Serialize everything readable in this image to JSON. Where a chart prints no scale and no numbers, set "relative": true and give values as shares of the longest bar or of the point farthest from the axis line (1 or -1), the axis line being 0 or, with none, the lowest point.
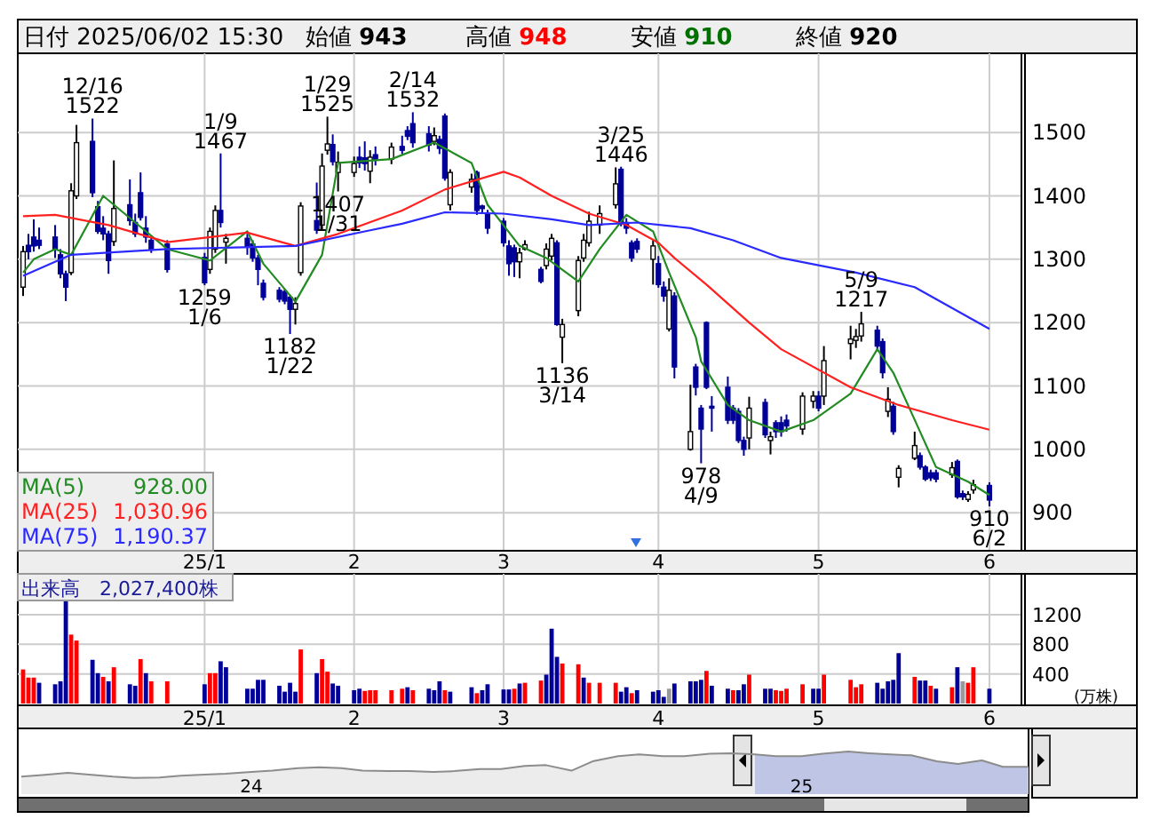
{
  "chart_data": [
    {
      "type": "candlestick",
      "title": "日付 2025/06/02 15:30",
      "grid": true,
      "legend": "bottom left",
      "x": [
        "2024-12-03",
        "2024-12-04",
        "2024-12-05",
        "2024-12-06",
        "2024-12-09",
        "2024-12-10",
        "2024-12-11",
        "2024-12-12",
        "2024-12-13",
        "2024-12-16",
        "2024-12-17",
        "2024-12-18",
        "2024-12-19",
        "2024-12-20",
        "2024-12-23",
        "2024-12-24",
        "2024-12-25",
        "2024-12-26",
        "2024-12-27",
        "2024-12-30",
        "2025-01-06",
        "2025-01-07",
        "2025-01-08",
        "2025-01-09",
        "2025-01-10",
        "2025-01-14",
        "2025-01-15",
        "2025-01-16",
        "2025-01-17",
        "2025-01-20",
        "2025-01-21",
        "2025-01-22",
        "2025-01-23",
        "2025-01-24",
        "2025-01-27",
        "2025-01-28",
        "2025-01-29",
        "2025-01-30",
        "2025-01-31",
        "2025-02-03",
        "2025-02-04",
        "2025-02-05",
        "2025-02-06",
        "2025-02-07",
        "2025-02-10",
        "2025-02-12",
        "2025-02-13",
        "2025-02-14",
        "2025-02-17",
        "2025-02-18",
        "2025-02-19",
        "2025-02-20",
        "2025-02-21",
        "2025-02-25",
        "2025-02-26",
        "2025-02-27",
        "2025-02-28",
        "2025-03-03",
        "2025-03-04",
        "2025-03-05",
        "2025-03-06",
        "2025-03-07",
        "2025-03-10",
        "2025-03-11",
        "2025-03-12",
        "2025-03-13",
        "2025-03-14",
        "2025-03-17",
        "2025-03-18",
        "2025-03-19",
        "2025-03-21",
        "2025-03-24",
        "2025-03-25",
        "2025-03-26",
        "2025-03-27",
        "2025-03-28",
        "2025-03-31",
        "2025-04-01",
        "2025-04-02",
        "2025-04-03",
        "2025-04-04",
        "2025-04-07",
        "2025-04-08",
        "2025-04-09",
        "2025-04-10",
        "2025-04-11",
        "2025-04-14",
        "2025-04-15",
        "2025-04-16",
        "2025-04-17",
        "2025-04-18",
        "2025-04-21",
        "2025-04-22",
        "2025-04-23",
        "2025-04-24",
        "2025-04-25",
        "2025-04-28",
        "2025-04-30",
        "2025-05-01",
        "2025-05-02",
        "2025-05-07",
        "2025-05-08",
        "2025-05-09",
        "2025-05-12",
        "2025-05-13",
        "2025-05-14",
        "2025-05-15",
        "2025-05-16",
        "2025-05-19",
        "2025-05-20",
        "2025-05-21",
        "2025-05-22",
        "2025-05-23",
        "2025-05-26",
        "2025-05-27",
        "2025-05-28",
        "2025-05-29",
        "2025-05-30",
        "2025-06-02"
      ],
      "ohlc": [
        [
          1256,
          1321,
          1242,
          1312
        ],
        [
          1322,
          1340,
          1300,
          1312
        ],
        [
          1335,
          1363,
          1312,
          1321
        ],
        [
          1330,
          1350,
          1316,
          1322
        ],
        [
          1335,
          1354,
          1302,
          1316
        ],
        [
          1307,
          1316,
          1270,
          1277
        ],
        [
          1277,
          1282,
          1234,
          1256
        ],
        [
          1279,
          1420,
          1275,
          1408
        ],
        [
          1400,
          1512,
          1395,
          1484
        ],
        [
          1486,
          1522,
          1398,
          1405
        ],
        [
          1383,
          1392,
          1340,
          1344
        ],
        [
          1349,
          1368,
          1330,
          1340
        ],
        [
          1340,
          1345,
          1277,
          1298
        ],
        [
          1328,
          1456,
          1321,
          1380
        ],
        [
          1386,
          1426,
          1353,
          1361
        ],
        [
          1358,
          1372,
          1335,
          1340
        ],
        [
          1405,
          1437,
          1361,
          1366
        ],
        [
          1349,
          1368,
          1326,
          1335
        ],
        [
          1330,
          1335,
          1310,
          1316
        ],
        [
          1324,
          1330,
          1279,
          1284
        ],
        [
          1303,
          1310,
          1259,
          1263
        ],
        [
          1284,
          1350,
          1277,
          1344
        ],
        [
          1316,
          1385,
          1310,
          1377
        ],
        [
          1377,
          1467,
          1350,
          1358
        ],
        [
          1327,
          1340,
          1293,
          1333
        ],
        [
          1333,
          1340,
          1307,
          1320
        ],
        [
          1324,
          1330,
          1296,
          1302
        ],
        [
          1302,
          1307,
          1259,
          1284
        ],
        [
          1262,
          1268,
          1235,
          1240
        ],
        [
          1251,
          1256,
          1232,
          1237
        ],
        [
          1249,
          1253,
          1229,
          1234
        ],
        [
          1240,
          1244,
          1182,
          1221
        ],
        [
          1221,
          1240,
          1197,
          1230
        ],
        [
          1279,
          1390,
          1274,
          1384
        ],
        [
          1361,
          1421,
          1340,
          1346
        ],
        [
          1354,
          1467,
          1347,
          1447
        ],
        [
          1472,
          1525,
          1465,
          1482
        ],
        [
          1481,
          1497,
          1448,
          1454
        ],
        [
          1437,
          1470,
          1407,
          1453
        ],
        [
          1437,
          1462,
          1430,
          1451
        ],
        [
          1461,
          1478,
          1444,
          1452
        ],
        [
          1460,
          1486,
          1440,
          1451
        ],
        [
          1439,
          1472,
          1420,
          1461
        ],
        [
          1465,
          1478,
          1448,
          1458
        ],
        [
          1458,
          1484,
          1450,
          1477
        ],
        [
          1478,
          1495,
          1466,
          1472
        ],
        [
          1503,
          1510,
          1488,
          1494
        ],
        [
          1514,
          1532,
          1476,
          1484
        ],
        [
          1498,
          1510,
          1470,
          1480
        ],
        [
          1486,
          1508,
          1480,
          1495
        ],
        [
          1489,
          1495,
          1466,
          1475
        ],
        [
          1526,
          1530,
          1424,
          1428
        ],
        [
          1386,
          1442,
          1377,
          1437
        ],
        [
          1414,
          1435,
          1405,
          1426
        ],
        [
          1437,
          1440,
          1370,
          1377
        ],
        [
          1384,
          1386,
          1374,
          1380
        ],
        [
          1372,
          1378,
          1340,
          1349
        ],
        [
          1360,
          1365,
          1320,
          1326
        ],
        [
          1321,
          1330,
          1274,
          1293
        ],
        [
          1318,
          1323,
          1272,
          1296
        ],
        [
          1296,
          1318,
          1270,
          1310
        ],
        [
          1316,
          1330,
          1314,
          1323
        ],
        [
          1284,
          1288,
          1262,
          1265
        ],
        [
          1290,
          1325,
          1284,
          1316
        ],
        [
          1305,
          1340,
          1298,
          1333
        ],
        [
          1326,
          1330,
          1195,
          1197
        ],
        [
          1177,
          1206,
          1136,
          1197
        ],
        [
          1219,
          1305,
          1210,
          1298
        ],
        [
          1302,
          1340,
          1296,
          1330
        ],
        [
          1326,
          1375,
          1320,
          1360
        ],
        [
          1354,
          1385,
          1340,
          1372
        ],
        [
          1386,
          1445,
          1380,
          1419
        ],
        [
          1442,
          1446,
          1352,
          1358
        ],
        [
          1358,
          1365,
          1340,
          1349
        ],
        [
          1326,
          1330,
          1296,
          1302
        ],
        [
          1328,
          1333,
          1310,
          1316
        ],
        [
          1300,
          1330,
          1260,
          1321
        ],
        [
          1293,
          1305,
          1255,
          1260
        ],
        [
          1256,
          1265,
          1233,
          1242
        ],
        [
          1190,
          1270,
          1186,
          1251
        ],
        [
          1242,
          1248,
          1112,
          1130
        ],
        [
          1000,
          1102,
          998,
          1028
        ],
        [
          1130,
          1135,
          1085,
          1098
        ],
        [
          1065,
          1070,
          978,
          1032
        ],
        [
          1200,
          1202,
          1095,
          1098
        ],
        [
          1068,
          1084,
          1028,
          1065
        ],
        [
          1098,
          1115,
          1040,
          1046
        ],
        [
          1065,
          1070,
          1040,
          1046
        ],
        [
          1060,
          1065,
          1010,
          1014
        ],
        [
          1014,
          1020,
          990,
          1000
        ],
        [
          1018,
          1083,
          1000,
          1065
        ],
        [
          1074,
          1080,
          1018,
          1023
        ],
        [
          1014,
          1028,
          992,
          1020
        ],
        [
          1042,
          1046,
          1018,
          1028
        ],
        [
          1042,
          1052,
          1020,
          1028
        ],
        [
          1046,
          1055,
          1028,
          1037
        ],
        [
          1032,
          1090,
          1023,
          1084
        ],
        [
          1076,
          1092,
          1065,
          1084
        ],
        [
          1084,
          1092,
          1060,
          1065
        ],
        [
          1084,
          1163,
          1070,
          1140
        ],
        [
          1167,
          1195,
          1142,
          1174
        ],
        [
          1172,
          1190,
          1160,
          1178
        ],
        [
          1179,
          1217,
          1170,
          1198
        ],
        [
          1188,
          1195,
          1155,
          1163
        ],
        [
          1170,
          1175,
          1112,
          1121
        ],
        [
          1060,
          1098,
          1051,
          1079
        ],
        [
          1068,
          1075,
          1023,
          1028
        ],
        [
          956,
          975,
          940,
          970
        ],
        [
          986,
          1028,
          983,
          1006
        ],
        [
          990,
          995,
          968,
          972
        ],
        [
          972,
          975,
          950,
          953
        ],
        [
          963,
          968,
          950,
          955
        ],
        [
          963,
          968,
          948,
          953
        ],
        [
          960,
          980,
          955,
          971
        ],
        [
          981,
          984,
          922,
          925
        ],
        [
          930,
          935,
          920,
          925
        ],
        [
          921,
          934,
          917,
          929
        ],
        [
          936,
          952,
          930,
          944
        ],
        [
          943,
          948,
          910,
          920
        ]
      ],
      "colors": [
        "#ffffff",
        "#000099",
        "#000099",
        "#000099",
        "#000099",
        "#000099",
        "#000099",
        "#ffffff",
        "#ffffff",
        "#000099",
        "#000099",
        "#000099",
        "#000099",
        "#ffffff",
        "#000099",
        "#000099",
        "#000099",
        "#000099",
        "#000099",
        "#000099",
        "#000099",
        "#ffffff",
        "#ffffff",
        "#000099",
        "#ffffff",
        "#000099",
        "#000099",
        "#000099",
        "#000099",
        "#000099",
        "#000099",
        "#000099",
        "#ffffff",
        "#ffffff",
        "#000099",
        "#ffffff",
        "#ffffff",
        "#000099",
        "#ffffff",
        "#ffffff",
        "#000099",
        "#000099",
        "#ffffff",
        "#000099",
        "#ffffff",
        "#000099",
        "#000099",
        "#000099",
        "#000099",
        "#ffffff",
        "#000099",
        "#000099",
        "#ffffff",
        "#ffffff",
        "#000099",
        "#000099",
        "#000099",
        "#000099",
        "#000099",
        "#000099",
        "#ffffff",
        "#ffffff",
        "#000099",
        "#ffffff",
        "#ffffff",
        "#000099",
        "#ffffff",
        "#ffffff",
        "#ffffff",
        "#ffffff",
        "#ffffff",
        "#ffffff",
        "#000099",
        "#000099",
        "#000099",
        "#000099",
        "#ffffff",
        "#000099",
        "#000099",
        "#ffffff",
        "#000099",
        "#ffffff",
        "#000099",
        "#000099",
        "#000099",
        "#000099",
        "#000099",
        "#000099",
        "#000099",
        "#000099",
        "#ffffff",
        "#000099",
        "#ffffff",
        "#000099",
        "#000099",
        "#000099",
        "#ffffff",
        "#ffffff",
        "#000099",
        "#ffffff",
        "#ffffff",
        "#ffffff",
        "#ffffff",
        "#000099",
        "#000099",
        "#ffffff",
        "#000099",
        "#ffffff",
        "#ffffff",
        "#000099",
        "#000099",
        "#000099",
        "#000099",
        "#ffffff",
        "#000099",
        "#000099",
        "#ffffff",
        "#ffffff",
        "#000099"
      ],
      "series": [
        {
          "name": "MA(5)",
          "type": "line",
          "color": "#228b22",
          "x": [
            "2024-12-03",
            "2024-12-05",
            "2024-12-09",
            "2024-12-12",
            "2024-12-18",
            "2024-12-24",
            "2024-12-30",
            "2025-01-07",
            "2025-01-14",
            "2025-01-17",
            "2025-01-23",
            "2025-01-28",
            "2025-01-31",
            "2025-02-10",
            "2025-02-18",
            "2025-02-25",
            "2025-02-28",
            "2025-03-06",
            "2025-03-11",
            "2025-03-17",
            "2025-03-21",
            "2025-03-26",
            "2025-03-31",
            "2025-04-03",
            "2025-04-08",
            "2025-04-09",
            "2025-04-14",
            "2025-04-18",
            "2025-04-24",
            "2025-04-30",
            "2025-05-07",
            "2025-05-12",
            "2025-05-15",
            "2025-05-20",
            "2025-05-23",
            "2025-05-29",
            "2025-06-02"
          ],
          "values": [
            1279,
            1300,
            1316,
            1307,
            1400,
            1358,
            1316,
            1298,
            1344,
            1293,
            1233,
            1307,
            1452,
            1458,
            1484,
            1452,
            1386,
            1321,
            1302,
            1265,
            1316,
            1370,
            1344,
            1279,
            1177,
            1139,
            1070,
            1046,
            1028,
            1046,
            1088,
            1158,
            1121,
            1028,
            972,
            949,
            928
          ]
        },
        {
          "name": "MA(25)",
          "type": "line",
          "color": "#ff2020",
          "x": [
            "2024-12-03",
            "2024-12-09",
            "2024-12-19",
            "2024-12-30",
            "2025-01-14",
            "2025-01-23",
            "2025-01-31",
            "2025-02-12",
            "2025-02-20",
            "2025-03-03",
            "2025-03-06",
            "2025-03-12",
            "2025-03-19",
            "2025-03-26",
            "2025-04-01",
            "2025-04-04",
            "2025-04-10",
            "2025-04-18",
            "2025-04-24",
            "2025-05-07",
            "2025-05-16",
            "2025-05-26",
            "2025-06-02"
          ],
          "values": [
            1368,
            1370,
            1354,
            1327,
            1342,
            1321,
            1340,
            1377,
            1410,
            1438,
            1429,
            1400,
            1372,
            1354,
            1326,
            1302,
            1260,
            1200,
            1158,
            1098,
            1070,
            1046,
            1031
          ]
        },
        {
          "name": "MA(75)",
          "type": "line",
          "color": "#2a2aff",
          "x": [
            "2024-12-03",
            "2024-12-12",
            "2024-12-30",
            "2025-01-23",
            "2025-02-05",
            "2025-02-12",
            "2025-02-20",
            "2025-03-03",
            "2025-03-12",
            "2025-03-19",
            "2025-03-28",
            "2025-04-07",
            "2025-04-15",
            "2025-04-24",
            "2025-05-08",
            "2025-05-19",
            "2025-06-02"
          ],
          "values": [
            1274,
            1307,
            1316,
            1321,
            1344,
            1356,
            1374,
            1372,
            1363,
            1354,
            1358,
            1349,
            1330,
            1302,
            1279,
            1256,
            1190
          ]
        }
      ],
      "xlim": [
        "2024-12-02",
        "2025-06-08"
      ],
      "ylim": [
        840,
        1625
      ],
      "yticks": [
        900,
        1000,
        1100,
        1200,
        1300,
        1400,
        1500
      ],
      "xticks": [
        {
          "value": "2025-01-06",
          "label": "25/1"
        },
        {
          "value": "2025-02-03",
          "label": "2"
        },
        {
          "value": "2025-03-03",
          "label": "3"
        },
        {
          "value": "2025-04-01",
          "label": "4"
        },
        {
          "value": "2025-05-01",
          "label": "5"
        },
        {
          "value": "2025-06-02",
          "label": "6"
        }
      ],
      "annotations": [
        "始値 **943**",
        "高値 **948**",
        "安値 **910**",
        "終値 **920**",
        "928.00",
        "1,030.96",
        "1,190.37",
        {
          "text": "12/16 1522",
          "x": "2024-12-16",
          "y": 1522
        },
        {
          "text": "1259 1/6",
          "x": "2025-01-06",
          "y": 1259
        },
        {
          "text": "1/9 1467",
          "x": "2025-01-09",
          "y": 1467
        },
        {
          "text": "1182 1/22",
          "x": "2025-01-22",
          "y": 1182
        },
        {
          "text": "1/29 1525",
          "x": "2025-01-29",
          "y": 1525
        },
        {
          "text": "1407 1/31",
          "x": "2025-01-31",
          "y": 1407
        },
        {
          "text": "2/14 1532",
          "x": "2025-02-14",
          "y": 1532
        },
        {
          "text": "1136 3/14",
          "x": "2025-03-14",
          "y": 1136
        },
        {
          "text": "3/25 1446",
          "x": "2025-03-25",
          "y": 1446
        },
        {
          "text": "978 4/9",
          "x": "2025-04-09",
          "y": 978
        },
        {
          "text": "5/9 1217",
          "x": "2025-05-09",
          "y": 1217
        },
        {
          "text": "910 6/2",
          "x": "2025-06-02",
          "y": 910
        }
      ]
    },
    {
      "type": "bar",
      "title": "出来高　2,027,400株",
      "ylabel": "(万株)",
      "grid": true,
      "x": [
        "2024-12-03",
        "2024-12-04",
        "2024-12-05",
        "2024-12-06",
        "2024-12-09",
        "2024-12-10",
        "2024-12-11",
        "2024-12-12",
        "2024-12-13",
        "2024-12-16",
        "2024-12-17",
        "2024-12-18",
        "2024-12-19",
        "2024-12-20",
        "2024-12-23",
        "2024-12-24",
        "2024-12-25",
        "2024-12-26",
        "2024-12-27",
        "2024-12-30",
        "2025-01-06",
        "2025-01-07",
        "2025-01-08",
        "2025-01-09",
        "2025-01-10",
        "2025-01-14",
        "2025-01-15",
        "2025-01-16",
        "2025-01-17",
        "2025-01-20",
        "2025-01-21",
        "2025-01-22",
        "2025-01-23",
        "2025-01-24",
        "2025-01-27",
        "2025-01-28",
        "2025-01-29",
        "2025-01-30",
        "2025-01-31",
        "2025-02-03",
        "2025-02-04",
        "2025-02-05",
        "2025-02-06",
        "2025-02-07",
        "2025-02-10",
        "2025-02-12",
        "2025-02-13",
        "2025-02-14",
        "2025-02-17",
        "2025-02-18",
        "2025-02-19",
        "2025-02-20",
        "2025-02-21",
        "2025-02-25",
        "2025-02-26",
        "2025-02-27",
        "2025-02-28",
        "2025-03-03",
        "2025-03-04",
        "2025-03-05",
        "2025-03-06",
        "2025-03-07",
        "2025-03-10",
        "2025-03-11",
        "2025-03-12",
        "2025-03-13",
        "2025-03-14",
        "2025-03-17",
        "2025-03-18",
        "2025-03-19",
        "2025-03-21",
        "2025-03-24",
        "2025-03-25",
        "2025-03-26",
        "2025-03-27",
        "2025-03-28",
        "2025-03-31",
        "2025-04-01",
        "2025-04-02",
        "2025-04-03",
        "2025-04-04",
        "2025-04-07",
        "2025-04-08",
        "2025-04-09",
        "2025-04-10",
        "2025-04-11",
        "2025-04-14",
        "2025-04-15",
        "2025-04-16",
        "2025-04-17",
        "2025-04-18",
        "2025-04-21",
        "2025-04-22",
        "2025-04-23",
        "2025-04-24",
        "2025-04-25",
        "2025-04-28",
        "2025-04-30",
        "2025-05-01",
        "2025-05-02",
        "2025-05-07",
        "2025-05-08",
        "2025-05-09",
        "2025-05-12",
        "2025-05-13",
        "2025-05-14",
        "2025-05-15",
        "2025-05-16",
        "2025-05-19",
        "2025-05-20",
        "2025-05-21",
        "2025-05-22",
        "2025-05-23",
        "2025-05-26",
        "2025-05-27",
        "2025-05-28",
        "2025-05-29",
        "2025-05-30",
        "2025-06-02"
      ],
      "values": [
        460,
        350,
        350,
        280,
        260,
        300,
        1400,
        930,
        850,
        590,
        410,
        360,
        300,
        490,
        260,
        240,
        600,
        410,
        300,
        300,
        260,
        410,
        410,
        570,
        490,
        200,
        200,
        320,
        320,
        240,
        160,
        280,
        160,
        730,
        410,
        600,
        430,
        270,
        240,
        180,
        200,
        170,
        180,
        180,
        180,
        200,
        220,
        180,
        200,
        180,
        300,
        180,
        160,
        220,
        140,
        180,
        260,
        190,
        190,
        200,
        270,
        280,
        310,
        390,
        1010,
        630,
        540,
        530,
        350,
        280,
        280,
        280,
        160,
        220,
        140,
        180,
        160,
        180,
        90,
        200,
        270,
        300,
        300,
        320,
        440,
        240,
        200,
        180,
        180,
        260,
        390,
        200,
        200,
        180,
        170,
        200,
        260,
        200,
        200,
        390,
        320,
        220,
        260,
        280,
        200,
        300,
        320,
        680,
        360,
        310,
        310,
        240,
        200,
        220,
        490,
        300,
        280,
        490,
        200
      ],
      "colors": [
        "#ff0000",
        "#ff0000",
        "#ff0000",
        "#000099",
        "#000099",
        "#000099",
        "#000099",
        "#ff0000",
        "#ff0000",
        "#000099",
        "#000099",
        "#ff0000",
        "#000099",
        "#ff0000",
        "#000099",
        "#000099",
        "#ff0000",
        "#000099",
        "#ff0000",
        "#ff0000",
        "#000099",
        "#ff0000",
        "#ff0000",
        "#000099",
        "#000099",
        "#000099",
        "#000099",
        "#000099",
        "#000099",
        "#000099",
        "#000099",
        "#000099",
        "#000099",
        "#ff0000",
        "#000099",
        "#ff0000",
        "#ff0000",
        "#000099",
        "#000099",
        "#000099",
        "#000099",
        "#ff0000",
        "#ff0000",
        "#ff0000",
        "#ff0000",
        "#ff0000",
        "#000099",
        "#ff0000",
        "#000099",
        "#000099",
        "#000099",
        "#ff0000",
        "#000099",
        "#000099",
        "#ff0000",
        "#000099",
        "#000099",
        "#000099",
        "#000099",
        "#ff0000",
        "#000099",
        "#ff0000",
        "#ff0000",
        "#000099",
        "#000099",
        "#000099",
        "#ff0000",
        "#ff0000",
        "#000099",
        "#ff0000",
        "#ff0000",
        "#ff0000",
        "#000099",
        "#000099",
        "#ff0000",
        "#000099",
        "#000099",
        "#000099",
        "#000099",
        "#999999",
        "#000099",
        "#000099",
        "#000099",
        "#000099",
        "#ff0000",
        "#000099",
        "#000099",
        "#ff0000",
        "#000099",
        "#000099",
        "#ff0000",
        "#000099",
        "#000099",
        "#ff0000",
        "#ff0000",
        "#ff0000",
        "#ff0000",
        "#000099",
        "#000099",
        "#ff0000",
        "#ff0000",
        "#ff0000",
        "#ff0000",
        "#000099",
        "#000099",
        "#000099",
        "#000099",
        "#000099",
        "#ff0000",
        "#000099",
        "#000099",
        "#ff0000",
        "#000099",
        "#ff0000",
        "#000099",
        "#999999",
        "#ff0000",
        "#ff0000",
        "#000099"
      ],
      "xlim": [
        "2024-12-02",
        "2025-06-08"
      ],
      "ylim": [
        0,
        1750
      ],
      "yticks": [
        400,
        800,
        1200
      ],
      "xticks": [
        {
          "value": "2025-01-06",
          "label": "25/1"
        },
        {
          "value": "2025-02-03",
          "label": "2"
        },
        {
          "value": "2025-03-03",
          "label": "3"
        },
        {
          "value": "2025-04-01",
          "label": "4"
        },
        {
          "value": "2025-05-01",
          "label": "5"
        },
        {
          "value": "2025-06-02",
          "label": "6"
        }
      ]
    },
    {
      "type": "area",
      "relative": true,
      "color": "#8c8c8c",
      "x": [
        "2023-08-01",
        "2023-08-15",
        "2023-09-01",
        "2023-09-15",
        "2023-10-01",
        "2023-10-15",
        "2023-11-01",
        "2023-11-15",
        "2023-12-01",
        "2023-12-15",
        "2024-01-01",
        "2024-01-15",
        "2024-02-01",
        "2024-02-15",
        "2024-03-01",
        "2024-03-15",
        "2024-04-01",
        "2024-04-15",
        "2024-05-01",
        "2024-05-15",
        "2024-06-01",
        "2024-06-15",
        "2024-07-01",
        "2024-07-15",
        "2024-08-01",
        "2024-08-15",
        "2024-09-01",
        "2024-09-15",
        "2024-10-01",
        "2024-10-15",
        "2024-11-01",
        "2024-11-15",
        "2024-12-01",
        "2024-12-15",
        "2025-01-01",
        "2025-01-15",
        "2025-02-01",
        "2025-02-15",
        "2025-03-01",
        "2025-03-15",
        "2025-04-01",
        "2025-04-15",
        "2025-05-01",
        "2025-05-15",
        "2025-06-01"
      ],
      "values": [
        0.41,
        0.45,
        0.5,
        0.46,
        0.41,
        0.38,
        0.39,
        0.43,
        0.46,
        0.48,
        0.52,
        0.55,
        0.61,
        0.63,
        0.61,
        0.55,
        0.54,
        0.54,
        0.52,
        0.54,
        0.59,
        0.59,
        0.66,
        0.68,
        0.55,
        0.77,
        0.89,
        0.93,
        0.89,
        0.89,
        0.95,
        0.96,
        0.93,
        0.89,
        0.89,
        0.95,
        1,
        0.96,
        0.93,
        0.91,
        0.77,
        0.71,
        0.79,
        0.64,
        0.64
      ],
      "xlim": [
        "2023-08-01",
        "2025-06-01"
      ],
      "xticks": [
        {
          "value": "2024-01-01",
          "label": "24"
        },
        {
          "value": "2025-01-01",
          "label": "25"
        }
      ],
      "bands": [
        {
          "axis": "x",
          "from": "2024-12-01",
          "to": "2025-06-01",
          "color": "#b8c4f4"
        }
      ]
    }
  ]
}
